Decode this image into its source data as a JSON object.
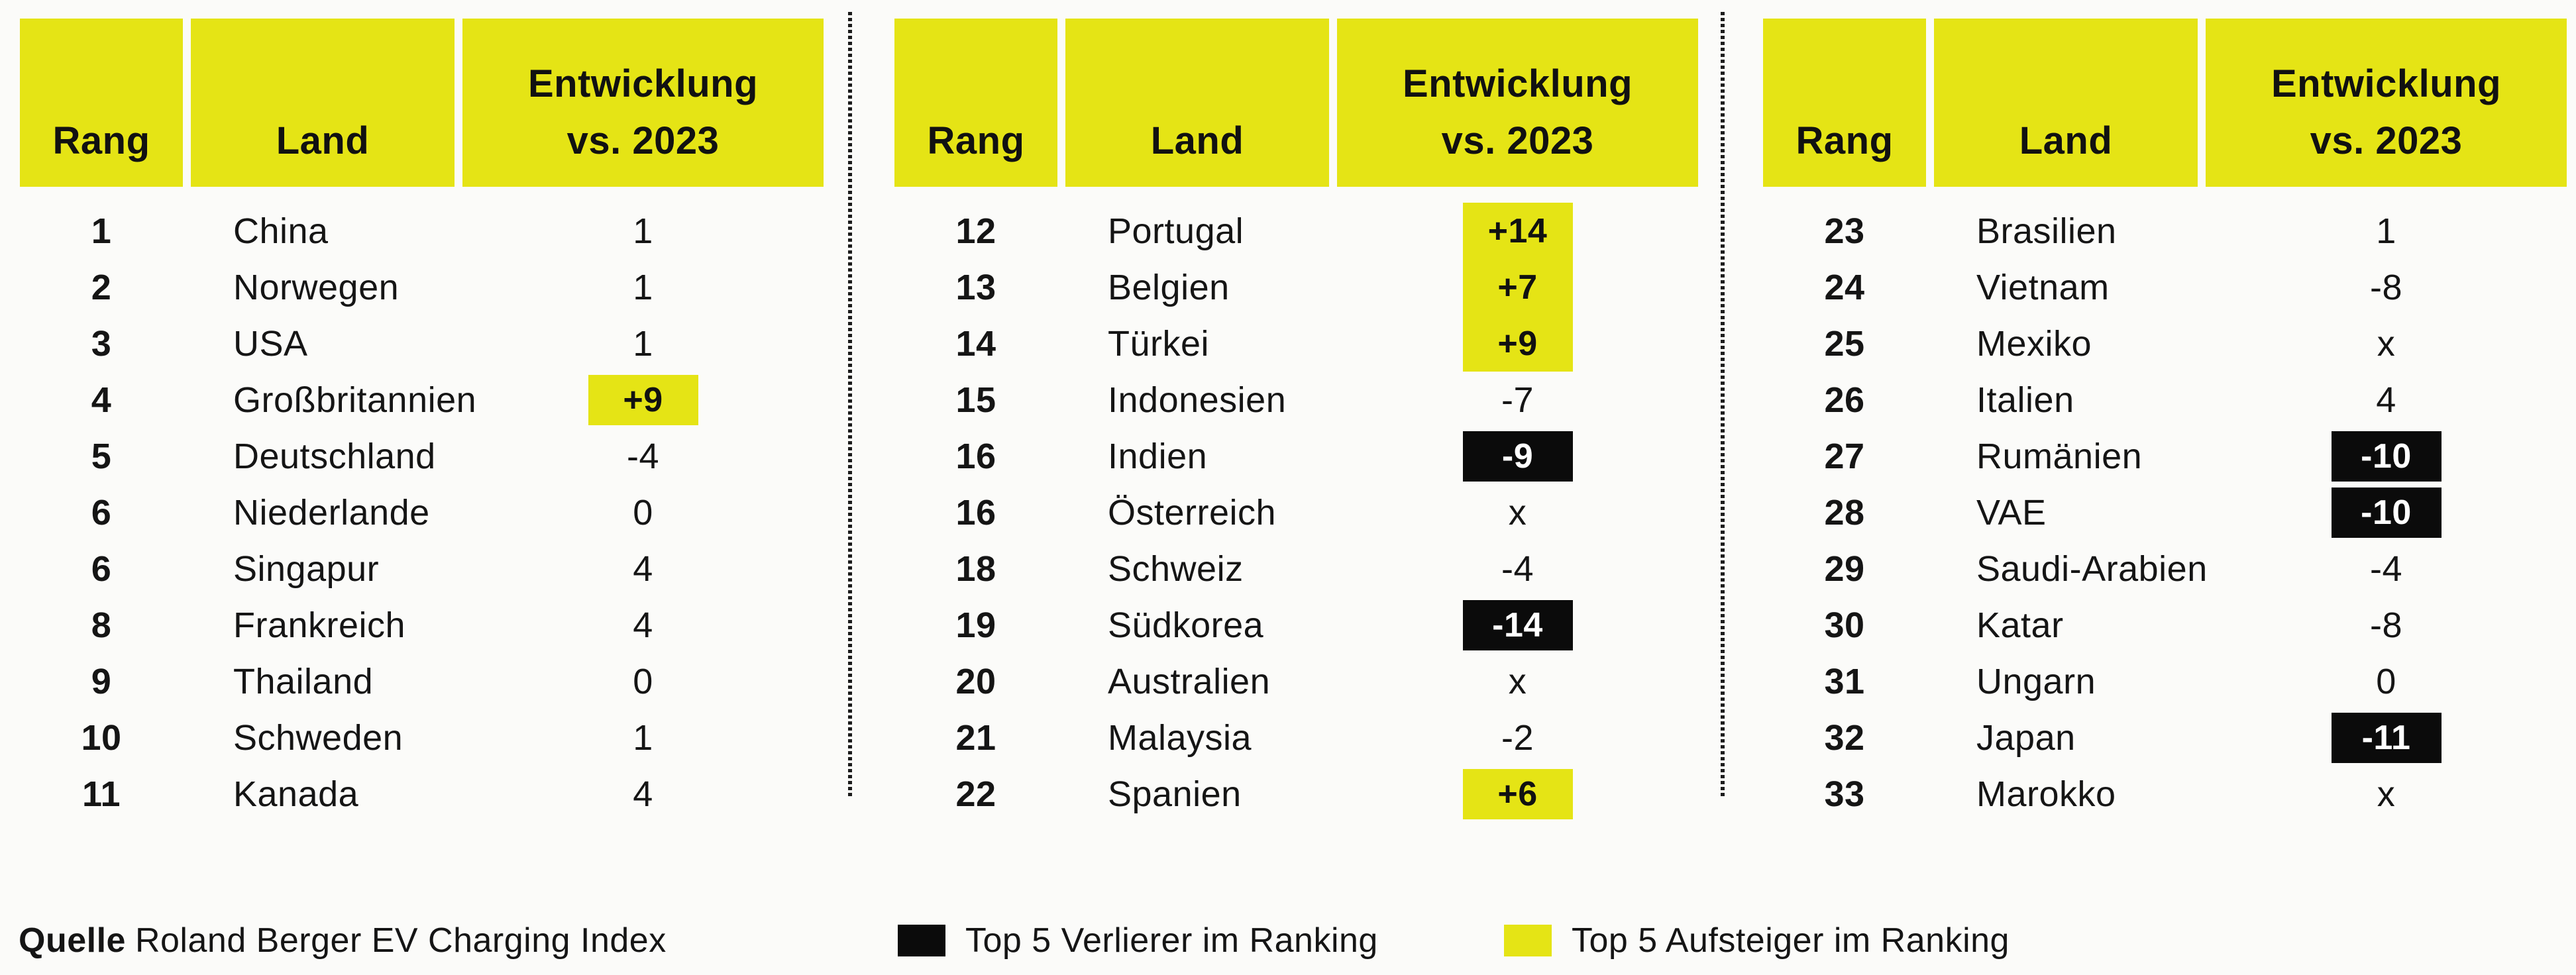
{
  "colors": {
    "gainer_yellow": "#e5e415",
    "loser_black": "#0b0b0b",
    "background": "#fbfbf9",
    "text": "#151515"
  },
  "header": {
    "rang": "Rang",
    "land": "Land",
    "entwicklung_line1": "Entwicklung",
    "entwicklung_line2": "vs. 2023"
  },
  "chart_data": {
    "type": "table",
    "title": "",
    "columns": [
      "Rang",
      "Land",
      "Entwicklung vs. 2023"
    ],
    "highlight_legend": {
      "gainer": "Top 5 Aufsteiger im Ranking (yellow)",
      "loser": "Top 5 Verlierer im Ranking (black)"
    },
    "tables": [
      {
        "rows": [
          {
            "rank": "1",
            "country": "China",
            "change": "1",
            "highlight": "none"
          },
          {
            "rank": "2",
            "country": "Norwegen",
            "change": "1",
            "highlight": "none"
          },
          {
            "rank": "3",
            "country": "USA",
            "change": "1",
            "highlight": "none"
          },
          {
            "rank": "4",
            "country": "Großbritannien",
            "change": "+9",
            "highlight": "gainer"
          },
          {
            "rank": "5",
            "country": "Deutschland",
            "change": "-4",
            "highlight": "none"
          },
          {
            "rank": "6",
            "country": "Niederlande",
            "change": "0",
            "highlight": "none"
          },
          {
            "rank": "6",
            "country": "Singapur",
            "change": "4",
            "highlight": "none"
          },
          {
            "rank": "8",
            "country": "Frankreich",
            "change": "4",
            "highlight": "none"
          },
          {
            "rank": "9",
            "country": "Thailand",
            "change": "0",
            "highlight": "none"
          },
          {
            "rank": "10",
            "country": "Schweden",
            "change": "1",
            "highlight": "none"
          },
          {
            "rank": "11",
            "country": "Kanada",
            "change": "4",
            "highlight": "none"
          }
        ]
      },
      {
        "rows": [
          {
            "rank": "12",
            "country": "Portugal",
            "change": "+14",
            "highlight": "gainer",
            "merge": true
          },
          {
            "rank": "13",
            "country": "Belgien",
            "change": "+7",
            "highlight": "gainer",
            "merge": true
          },
          {
            "rank": "14",
            "country": "Türkei",
            "change": "+9",
            "highlight": "gainer",
            "merge": true
          },
          {
            "rank": "15",
            "country": "Indonesien",
            "change": "-7",
            "highlight": "none"
          },
          {
            "rank": "16",
            "country": "Indien",
            "change": "-9",
            "highlight": "loser"
          },
          {
            "rank": "16",
            "country": "Österreich",
            "change": "x",
            "highlight": "none"
          },
          {
            "rank": "18",
            "country": "Schweiz",
            "change": "-4",
            "highlight": "none"
          },
          {
            "rank": "19",
            "country": "Südkorea",
            "change": "-14",
            "highlight": "loser"
          },
          {
            "rank": "20",
            "country": "Australien",
            "change": "x",
            "highlight": "none"
          },
          {
            "rank": "21",
            "country": "Malaysia",
            "change": "-2",
            "highlight": "none"
          },
          {
            "rank": "22",
            "country": "Spanien",
            "change": "+6",
            "highlight": "gainer"
          }
        ]
      },
      {
        "rows": [
          {
            "rank": "23",
            "country": "Brasilien",
            "change": "1",
            "highlight": "none"
          },
          {
            "rank": "24",
            "country": "Vietnam",
            "change": "-8",
            "highlight": "none"
          },
          {
            "rank": "25",
            "country": "Mexiko",
            "change": "x",
            "highlight": "none"
          },
          {
            "rank": "26",
            "country": "Italien",
            "change": "4",
            "highlight": "none"
          },
          {
            "rank": "27",
            "country": "Rumänien",
            "change": "-10",
            "highlight": "loser"
          },
          {
            "rank": "28",
            "country": "VAE",
            "change": "-10",
            "highlight": "loser"
          },
          {
            "rank": "29",
            "country": "Saudi-Arabien",
            "change": "-4",
            "highlight": "none"
          },
          {
            "rank": "30",
            "country": "Katar",
            "change": "-8",
            "highlight": "none"
          },
          {
            "rank": "31",
            "country": "Ungarn",
            "change": "0",
            "highlight": "none"
          },
          {
            "rank": "32",
            "country": "Japan",
            "change": "-11",
            "highlight": "loser"
          },
          {
            "rank": "33",
            "country": "Marokko",
            "change": "x",
            "highlight": "none"
          }
        ]
      }
    ]
  },
  "footer": {
    "source_label": "Quelle",
    "source_text": "Roland Berger EV Charging Index",
    "legend": [
      {
        "label": "Top 5 Verlierer im Ranking",
        "color": "#0b0b0b"
      },
      {
        "label": "Top 5 Aufsteiger im Ranking",
        "color": "#e5e415"
      }
    ]
  }
}
